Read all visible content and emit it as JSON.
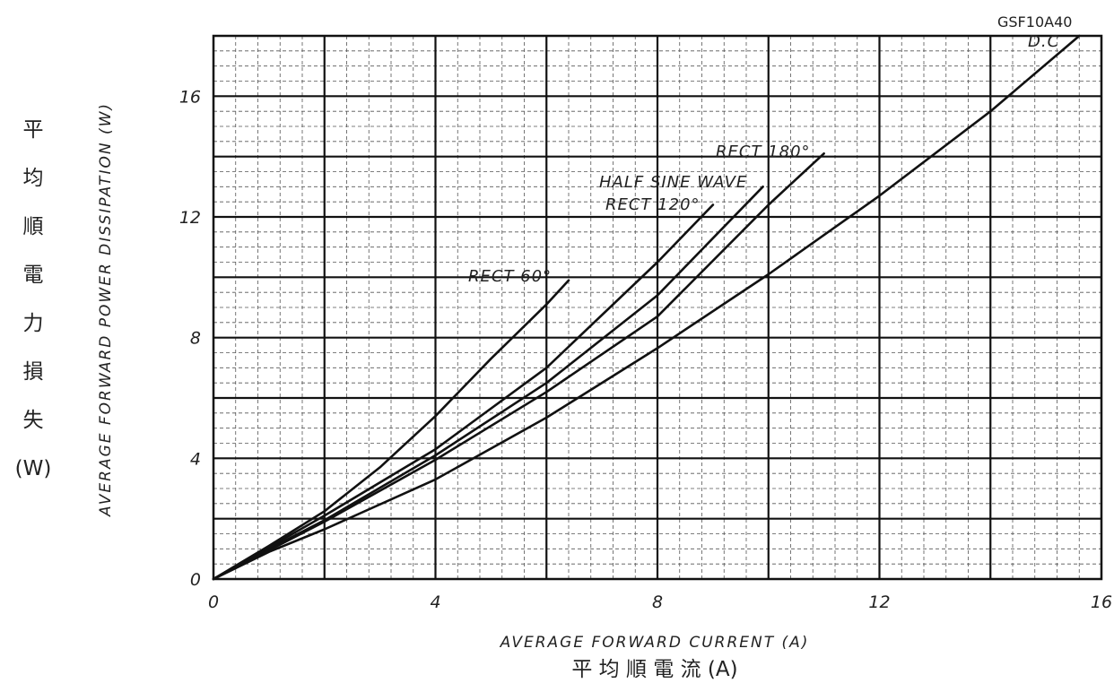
{
  "chart_data": {
    "type": "line",
    "model": "GSF10A40",
    "xlabel": "AVERAGE FORWARD CURRENT (A)",
    "xlabel_jp": "平 均 順 電 流 (A)",
    "ylabel": "AVERAGE FORWARD POWER DISSIPATION (W)",
    "ylabel_jp": [
      "平",
      "均",
      "順",
      "電",
      "力",
      "損",
      "失",
      "(W)"
    ],
    "xlim": [
      0,
      16
    ],
    "ylim": [
      0,
      18
    ],
    "x_ticks": [
      "0",
      "4",
      "8",
      "12",
      "16"
    ],
    "y_ticks": [
      "0",
      "4",
      "8",
      "12",
      "16"
    ],
    "grid": "major every 2 units, minor dashed",
    "series": [
      {
        "name": "D.C",
        "x": [
          0,
          1,
          2,
          4,
          6,
          8,
          10,
          12,
          14,
          15.6
        ],
        "y": [
          0,
          0.9,
          1.65,
          3.3,
          5.35,
          7.65,
          10.1,
          12.7,
          15.5,
          18
        ]
      },
      {
        "name": "HALF SINE WAVE",
        "x": [
          0,
          1,
          2,
          4,
          6,
          8,
          9.9
        ],
        "y": [
          0,
          1.0,
          1.95,
          4.1,
          6.5,
          9.4,
          13.0
        ]
      },
      {
        "name": "RECT 180°",
        "x": [
          0,
          1,
          2,
          4,
          6,
          8,
          10,
          11
        ],
        "y": [
          0,
          0.95,
          1.9,
          3.95,
          6.2,
          8.7,
          12.4,
          14.1
        ]
      },
      {
        "name": "RECT 120°",
        "x": [
          0,
          1,
          2,
          4,
          6,
          8,
          9.0
        ],
        "y": [
          0,
          1.05,
          2.1,
          4.3,
          7.0,
          10.5,
          12.4
        ]
      },
      {
        "name": "RECT 60°",
        "x": [
          0,
          1,
          2,
          3,
          4,
          5,
          6,
          6.4
        ],
        "y": [
          0,
          1.1,
          2.25,
          3.7,
          5.4,
          7.3,
          9.1,
          9.9
        ]
      }
    ]
  }
}
